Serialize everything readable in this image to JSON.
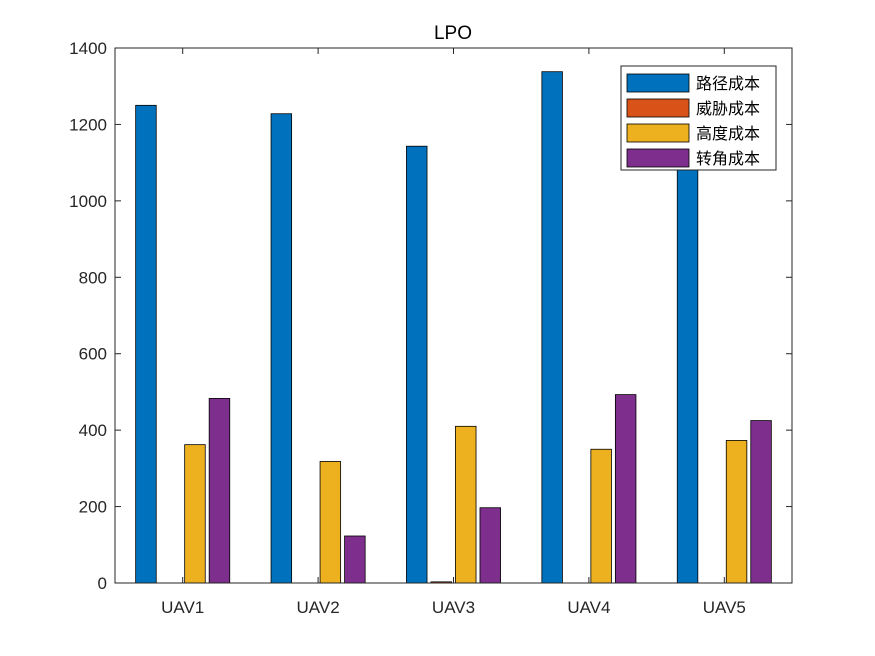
{
  "chart_data": {
    "type": "bar",
    "title": "LPO",
    "xlabel": "",
    "ylabel": "",
    "categories": [
      "UAV1",
      "UAV2",
      "UAV3",
      "UAV4",
      "UAV5"
    ],
    "ylim": [
      0,
      1400
    ],
    "yticks": [
      0,
      200,
      400,
      600,
      800,
      1000,
      1200,
      1400
    ],
    "grid": false,
    "legend_position": "top-right",
    "series": [
      {
        "name": "路径成本",
        "color": "#0072BD",
        "values": [
          1250,
          1228,
          1143,
          1338,
          1150
        ]
      },
      {
        "name": "威胁成本",
        "color": "#D95319",
        "values": [
          0,
          0,
          3,
          0,
          0
        ]
      },
      {
        "name": "高度成本",
        "color": "#EDB120",
        "values": [
          362,
          318,
          410,
          350,
          373
        ]
      },
      {
        "name": "转角成本",
        "color": "#7E2F8E",
        "values": [
          483,
          123,
          197,
          493,
          425
        ]
      }
    ]
  }
}
